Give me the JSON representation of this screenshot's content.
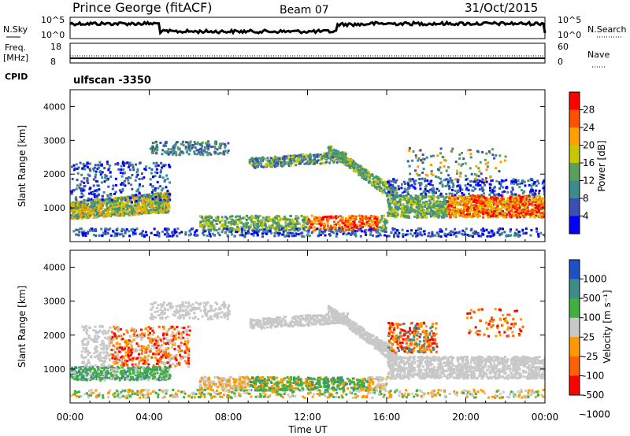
{
  "header": {
    "title": "Prince George (fitACF)",
    "beam": "Beam 07",
    "date": "31/Oct/2015"
  },
  "strip": {
    "nsky_label": "N.Sky",
    "nsearch_label": "N.Search",
    "freq_label_1": "Freq.",
    "freq_label_2": "[MHz]",
    "nave_label": "Nave",
    "cpid_label": "CPID",
    "cpid_value": "ulfscan -3350",
    "noise_ticks": [
      "10^5",
      "10^0"
    ],
    "freq_ticks": [
      "18",
      "8"
    ],
    "nave_ticks": [
      "60",
      "0"
    ]
  },
  "colors": {
    "power": [
      "#0000ff",
      "#3c50b4",
      "#3c8c8c",
      "#5a9f5a",
      "#c8c800",
      "#ffa000",
      "#ff5000",
      "#ff0000"
    ],
    "velocity": [
      "#2050c8",
      "#3c8c8c",
      "#40b040",
      "#c8c8c8",
      "#ff9900",
      "#ff6000",
      "#ff0000"
    ]
  },
  "chart_data": [
    {
      "type": "heatmap",
      "name": "power",
      "xlabel": "",
      "ylabel": "Slant Range [km]",
      "y_ticks": [
        "1000",
        "2000",
        "3000",
        "4000"
      ],
      "ylim": [
        0,
        4500
      ],
      "colorbar_label": "Power [dB]",
      "colorbar_ticks": [
        "4",
        "8",
        "12",
        "16",
        "20",
        "24",
        "28"
      ],
      "colorbar_range": [
        0,
        30
      ],
      "x_ticks": [
        "00:00",
        "04:00",
        "08:00",
        "12:00",
        "16:00",
        "20:00",
        "00:00"
      ]
    },
    {
      "type": "heatmap",
      "name": "velocity",
      "xlabel": "Time UT",
      "ylabel": "Slant Range [km]",
      "y_ticks": [
        "1000",
        "2000",
        "3000",
        "4000"
      ],
      "ylim": [
        0,
        4500
      ],
      "colorbar_label": "Velocity [m s⁻¹]",
      "colorbar_ticks": [
        "1000",
        "500",
        "100",
        "25",
        "-25",
        "-100",
        "-500",
        "-1000"
      ],
      "x_ticks": [
        "00:00",
        "04:00",
        "08:00",
        "12:00",
        "16:00",
        "20:00",
        "00:00"
      ]
    }
  ]
}
